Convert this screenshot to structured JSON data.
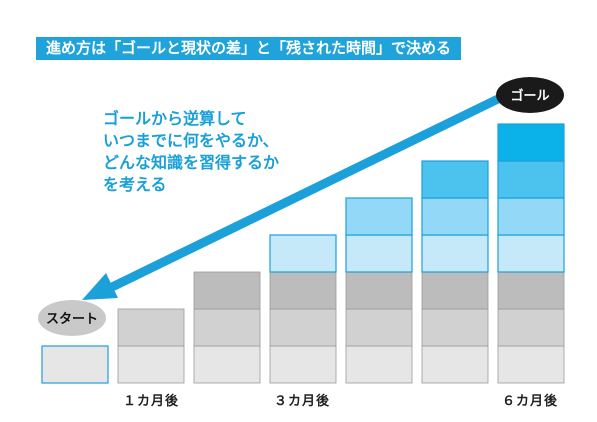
{
  "header": {
    "title": "進め方は「ゴールと現状の差」と「残された時間」で決める"
  },
  "description": {
    "lines": [
      "ゴールから逆算して",
      "いつまでに何をやるか、",
      "どんな知識を習得するか",
      "を考える"
    ]
  },
  "start_label": "スタート",
  "goal_label": "ゴール",
  "time_labels": {
    "t1": "１カ月後",
    "t3": "３カ月後",
    "t6": "６カ月後"
  },
  "colors": {
    "accent": "#1fa3da",
    "arrow": "#1ba0da",
    "pill_start": "#c9c9c9",
    "pill_goal": "#1a1a1a"
  },
  "columns": [
    {
      "blocks": [
        "light-gray"
      ]
    },
    {
      "blocks": [
        "light-gray",
        "mid-gray"
      ]
    },
    {
      "blocks": [
        "light-gray",
        "mid-gray",
        "dark-gray"
      ]
    },
    {
      "blocks": [
        "light-gray",
        "mid-gray",
        "dark-gray",
        "pale-blue"
      ]
    },
    {
      "blocks": [
        "light-gray",
        "mid-gray",
        "dark-gray",
        "pale-blue",
        "light-blue"
      ]
    },
    {
      "blocks": [
        "light-gray",
        "mid-gray",
        "dark-gray",
        "pale-blue",
        "light-blue",
        "sky-blue"
      ]
    },
    {
      "blocks": [
        "light-gray",
        "mid-gray",
        "dark-gray",
        "pale-blue",
        "light-blue",
        "sky-blue",
        "bright-blue"
      ]
    }
  ],
  "block_colors": {
    "light-gray": "#e6e6e6",
    "mid-gray": "#d1d1d1",
    "dark-gray": "#bcbcbc",
    "pale-blue": "#c6e9fa",
    "light-blue": "#93d8f6",
    "sky-blue": "#4cc3ef",
    "bright-blue": "#0bb2ea"
  }
}
